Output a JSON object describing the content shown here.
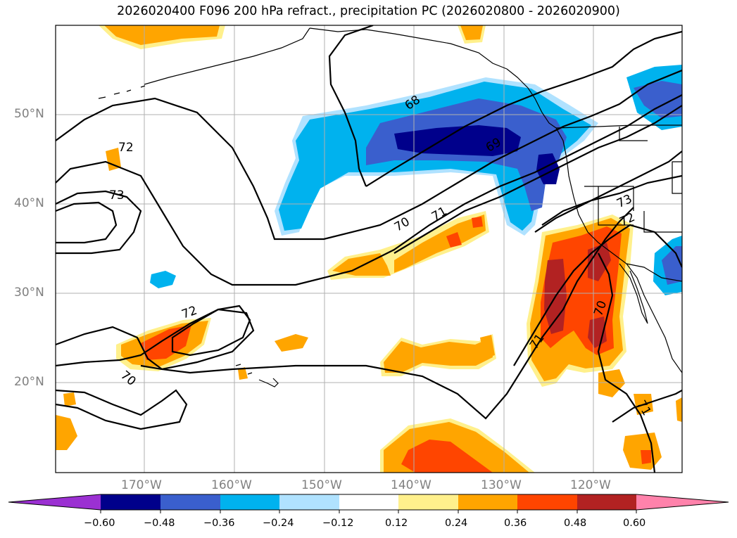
{
  "title": "2026020400 F096 200 hPa refract., precipitation PC (2026020800 - 2026020900)",
  "map": {
    "lat_labels": [
      "50°N",
      "40°N",
      "30°N",
      "20°N"
    ],
    "lon_labels": [
      "170°W",
      "160°W",
      "150°W",
      "140°W",
      "130°W",
      "120°W"
    ],
    "contour_labels": [
      "68",
      "69",
      "70",
      "71",
      "72",
      "73",
      "72",
      "73",
      "70",
      "72",
      "71",
      "70",
      "71",
      "72",
      "73"
    ]
  },
  "colorbar": {
    "ticks": [
      "−0.60",
      "−0.48",
      "−0.36",
      "−0.24",
      "−0.12",
      "0.12",
      "0.24",
      "0.36",
      "0.48",
      "0.60"
    ],
    "colors": [
      "#9b30d2",
      "#00008b",
      "#3a5fcd",
      "#00b2ee",
      "#b0e2ff",
      "#ffffff",
      "#fff08c",
      "#ffa500",
      "#ff4500",
      "#b22222",
      "#ff82ab"
    ]
  }
}
